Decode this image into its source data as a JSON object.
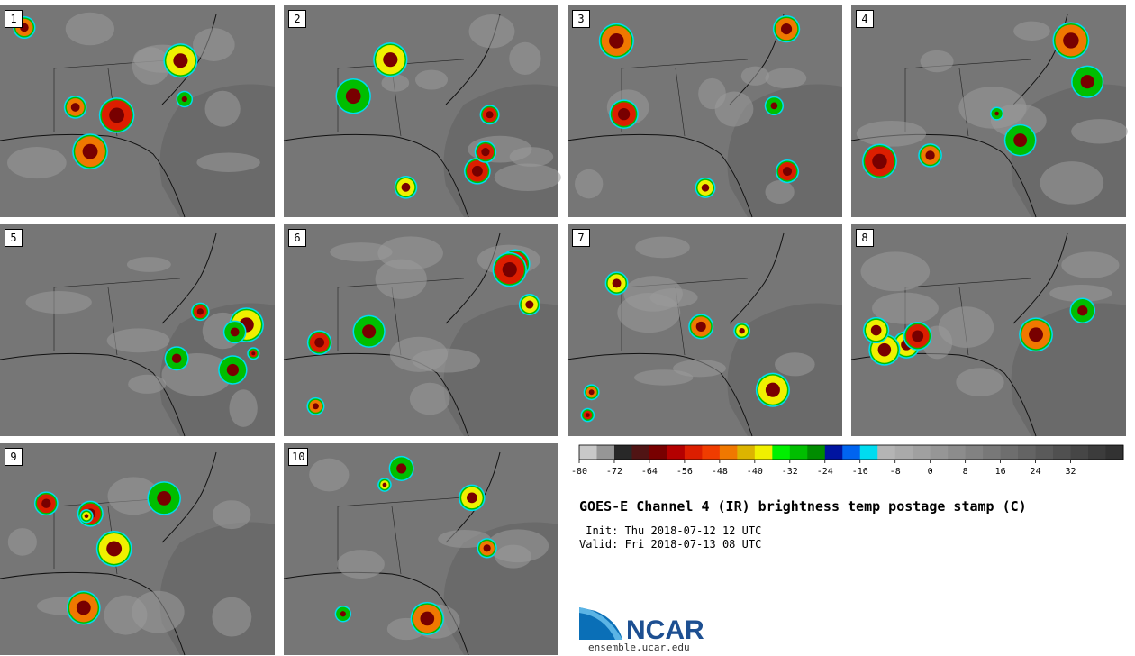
{
  "panels": [
    {
      "label": "1"
    },
    {
      "label": "2"
    },
    {
      "label": "3"
    },
    {
      "label": "4"
    },
    {
      "label": "5"
    },
    {
      "label": "6"
    },
    {
      "label": "7"
    },
    {
      "label": "8"
    },
    {
      "label": "9"
    },
    {
      "label": "10"
    }
  ],
  "colorbar": {
    "tick_labels": [
      "-80",
      "-72",
      "-64",
      "-56",
      "-48",
      "-40",
      "-32",
      "-24",
      "-16",
      "-8",
      "0",
      "8",
      "16",
      "24",
      "32"
    ],
    "colors": [
      "#c8c8c8",
      "#969696",
      "#282828",
      "#501414",
      "#780000",
      "#b40000",
      "#dc1e00",
      "#f03c00",
      "#f07800",
      "#dcb400",
      "#f0f000",
      "#00f000",
      "#00be00",
      "#008c00",
      "#0014a0",
      "#0064f0",
      "#00dcf0",
      "#b4b4b4",
      "#aaaaaa",
      "#a0a0a0",
      "#969696",
      "#8c8c8c",
      "#828282",
      "#787878",
      "#6e6e6e",
      "#646464",
      "#5a5a5a",
      "#505050",
      "#464646",
      "#3c3c3c",
      "#323232"
    ]
  },
  "title": "GOES-E Channel 4 (IR) brightness temp postage stamp (C)",
  "init": " Init: Thu 2018-07-12 12 UTC",
  "valid": "Valid: Fri 2018-07-13 08 UTC",
  "logo": {
    "text": "NCAR",
    "url": "ensemble.ucar.edu"
  }
}
